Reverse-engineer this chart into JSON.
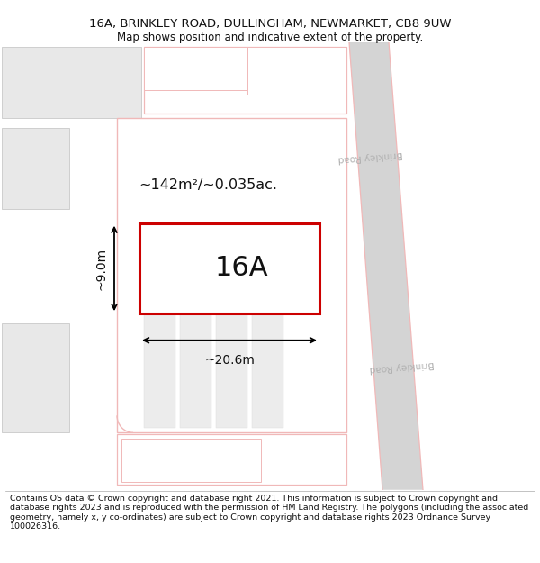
{
  "title_line1": "16A, BRINKLEY ROAD, DULLINGHAM, NEWMARKET, CB8 9UW",
  "title_line2": "Map shows position and indicative extent of the property.",
  "title_fontsize": 9.5,
  "subtitle_fontsize": 8.5,
  "footer_text": "Contains OS data © Crown copyright and database right 2021. This information is subject to Crown copyright and database rights 2023 and is reproduced with the permission of HM Land Registry. The polygons (including the associated geometry, namely x, y co-ordinates) are subject to Crown copyright and database rights 2023 Ordnance Survey 100026316.",
  "footer_fontsize": 6.8,
  "bg_color": "#ffffff",
  "road_color_light": "#f0b8b8",
  "red_outline_color": "#cc0000",
  "gray_light": "#e8e8e8",
  "gray_med": "#d8d8d8",
  "gray_dark": "#c8c8c8",
  "road_gray": "#d4d4d4",
  "brinkley_road_label": "Brinkley Road",
  "area_label": "~142m²/~0.035ac.",
  "house_label": "16A",
  "dim_width": "~20.6m",
  "dim_height": "~9.0m"
}
